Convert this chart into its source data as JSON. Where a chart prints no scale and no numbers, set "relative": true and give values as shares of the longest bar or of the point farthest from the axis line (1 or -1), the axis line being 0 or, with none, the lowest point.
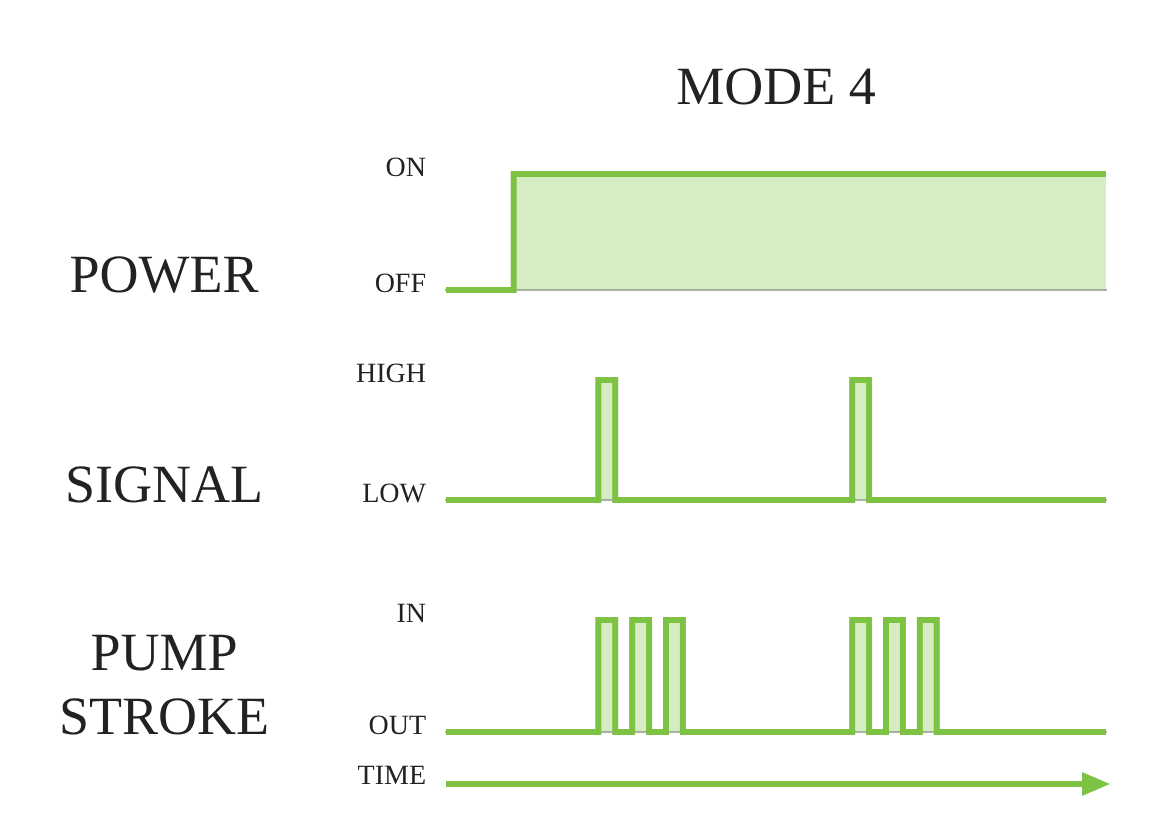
{
  "chart_data": [
    {
      "type": "step",
      "title": "MODE 4",
      "ylabel": "POWER",
      "categories": [
        null,
        null,
        null,
        null,
        null,
        null,
        null,
        null,
        null,
        null,
        null,
        null,
        null,
        null,
        null,
        null,
        null,
        null,
        null,
        null,
        null,
        null,
        null,
        null,
        null,
        null,
        null,
        null,
        null,
        null,
        null,
        null,
        null,
        null,
        null,
        null,
        null,
        null,
        null,
        null
      ],
      "series": [
        {
          "color": "#7dc242",
          "values": [
            0,
            0,
            0,
            0,
            0,
            1,
            1,
            1,
            1,
            1,
            1,
            1,
            1,
            1,
            1,
            1,
            1,
            1,
            1,
            1,
            1,
            1,
            1,
            1,
            1,
            1,
            1,
            1,
            1,
            1,
            1,
            1,
            1,
            1,
            1,
            1,
            1,
            1,
            1,
            1
          ]
        }
      ],
      "relative": true,
      "annotations": [
        "ON",
        "OFF"
      ],
      "tick_labels": false
    },
    {
      "type": "step",
      "ylabel": "SIGNAL",
      "categories": [
        null,
        null,
        null,
        null,
        null,
        null,
        null,
        null,
        null,
        null,
        null,
        null,
        null,
        null,
        null,
        null,
        null,
        null,
        null,
        null,
        null,
        null,
        null,
        null,
        null,
        null,
        null,
        null,
        null,
        null,
        null,
        null,
        null,
        null,
        null,
        null,
        null,
        null,
        null,
        null
      ],
      "series": [
        {
          "color": "#7dc242",
          "values": [
            0,
            0,
            0,
            0,
            0,
            0,
            0,
            0,
            0,
            0,
            1,
            0,
            0,
            0,
            0,
            0,
            0,
            0,
            0,
            0,
            0,
            0,
            0,
            0,
            0,
            1,
            0,
            0,
            0,
            0,
            0,
            0,
            0,
            0,
            0,
            0,
            0,
            0,
            0,
            0
          ]
        }
      ],
      "relative": true,
      "annotations": [
        "HIGH",
        "LOW"
      ],
      "tick_labels": false
    },
    {
      "type": "step",
      "ylabel": "PUMP STROKE",
      "xlabel": "TIME",
      "categories": [
        null,
        null,
        null,
        null,
        null,
        null,
        null,
        null,
        null,
        null,
        null,
        null,
        null,
        null,
        null,
        null,
        null,
        null,
        null,
        null,
        null,
        null,
        null,
        null,
        null,
        null,
        null,
        null,
        null,
        null,
        null,
        null,
        null,
        null,
        null,
        null,
        null,
        null,
        null,
        null
      ],
      "series": [
        {
          "color": "#7dc242",
          "values": [
            0,
            0,
            0,
            0,
            0,
            0,
            0,
            0,
            0,
            0,
            1,
            0,
            1,
            0,
            1,
            0,
            0,
            0,
            0,
            0,
            0,
            0,
            0,
            0,
            0,
            1,
            0,
            1,
            0,
            1,
            0,
            0,
            0,
            0,
            0,
            0,
            0,
            0,
            0,
            0
          ]
        }
      ],
      "relative": true,
      "annotations": [
        "IN",
        "OUT"
      ],
      "tick_labels": false
    }
  ]
}
